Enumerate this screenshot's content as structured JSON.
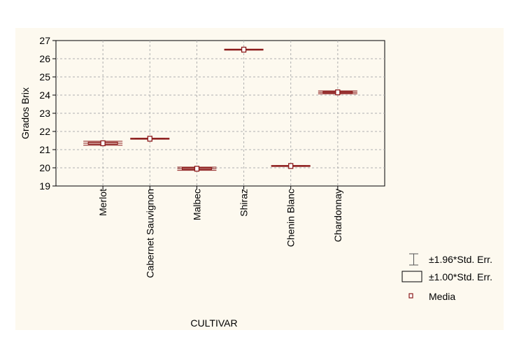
{
  "chart_data": {
    "type": "box",
    "title": "",
    "xlabel": "CULTIVAR",
    "ylabel": "Grados Brix",
    "ylim": [
      19,
      27
    ],
    "yticks": [
      "19",
      "20",
      "21",
      "22",
      "23",
      "24",
      "25",
      "26",
      "27"
    ],
    "grid": true,
    "categories": [
      "Merlot",
      "Cabernet Sauvignon",
      "Malbec",
      "Shiraz",
      "Chenin Blanc",
      "Chardonnay"
    ],
    "series": [
      {
        "name": "Media",
        "values": [
          21.35,
          21.6,
          19.95,
          26.5,
          20.1,
          24.15
        ],
        "se1": [
          0.06,
          0.02,
          0.05,
          0.02,
          0.02,
          0.04
        ],
        "se196": [
          0.11,
          0.03,
          0.09,
          0.03,
          0.03,
          0.08
        ]
      }
    ],
    "legend": {
      "position": "right",
      "items": [
        "±1.96*Std. Err.",
        "±1.00*Std. Err.",
        "Media"
      ]
    },
    "colors": {
      "mark": "#8b1a1a",
      "background": "#fdf9ef",
      "grid": "#b0b0b0"
    }
  }
}
